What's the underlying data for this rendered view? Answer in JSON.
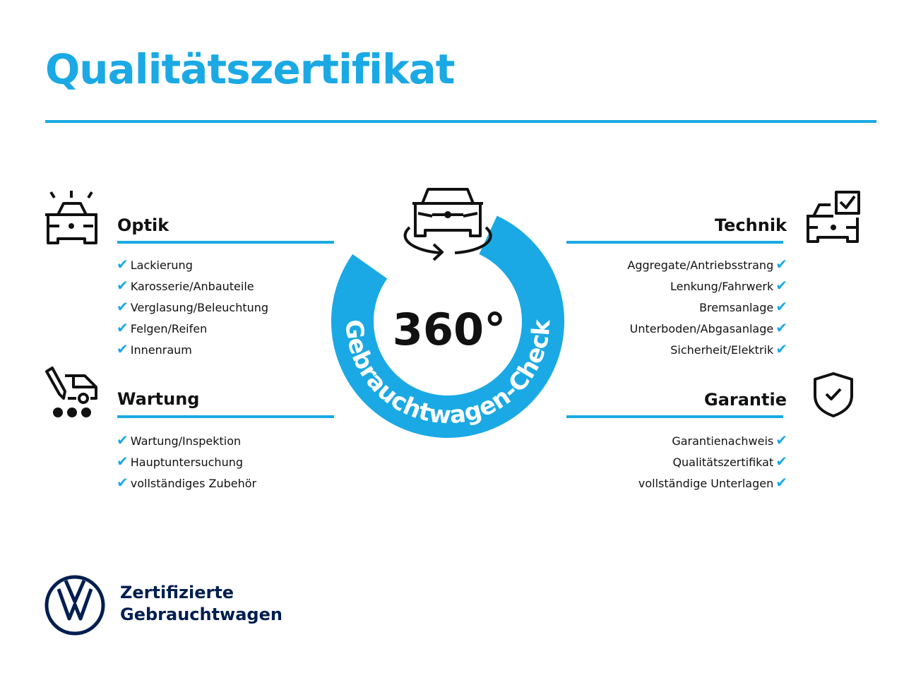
{
  "header": {
    "title": "Qualitätszertifikat"
  },
  "colors": {
    "accent": "#1aa9e4",
    "brand": "#001e50",
    "check": "#1aa9e4"
  },
  "sections": {
    "optik": {
      "title": "Optik",
      "icon": "car-lights-icon",
      "items": [
        "Lackierung",
        "Karosserie/Anbauteile",
        "Verglasung/Beleuchtung",
        "Felgen/Reifen",
        "Innenraum"
      ]
    },
    "wartung": {
      "title": "Wartung",
      "icon": "service-van-icon",
      "items": [
        "Wartung/Inspektion",
        "Hauptuntersuchung",
        "vollständiges Zubehör"
      ]
    },
    "technik": {
      "title": "Technik",
      "icon": "car-checklist-icon",
      "items": [
        "Aggregate/Antriebsstrang",
        "Lenkung/Fahrwerk",
        "Bremsanlage",
        "Unterboden/Abgasanlage",
        "Sicherheit/Elektrik"
      ]
    },
    "garantie": {
      "title": "Garantie",
      "icon": "shield-check-icon",
      "items": [
        "Garantienachweis",
        "Qualitätszertifikat",
        "vollständige Unterlagen"
      ]
    }
  },
  "badge": {
    "degrees": "360°",
    "ring_text": "Gebrauchtwagen-Check",
    "icon": "car-rotate-icon"
  },
  "footer": {
    "logo": "VW",
    "brand_line1": "Zertifizierte",
    "brand_line2": "Gebrauchtwagen"
  }
}
